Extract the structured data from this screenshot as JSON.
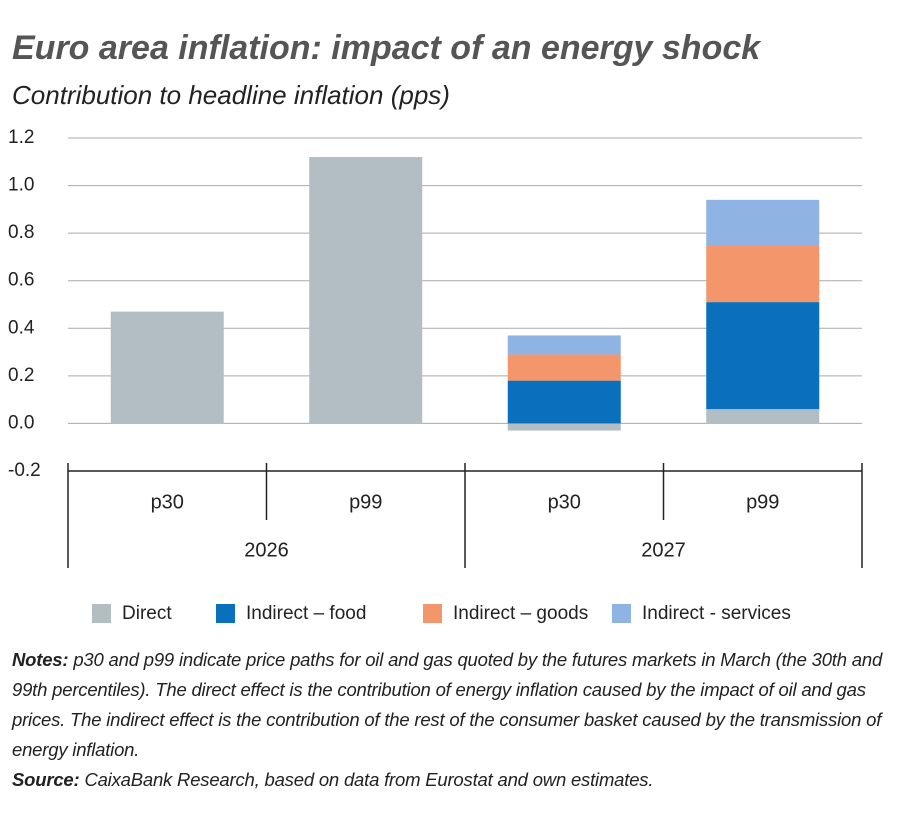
{
  "chart_data": {
    "type": "stacked-bar",
    "title": "Euro area inflation: impact of an energy shock",
    "subtitle": "Contribution to headline inflation (pps)",
    "categories": [
      "p30",
      "p99",
      "p30",
      "p99"
    ],
    "groups": [
      "2026",
      "2027"
    ],
    "series": [
      {
        "name": "Direct",
        "color": "#b2bec3",
        "values": [
          0.47,
          1.12,
          -0.03,
          0.06
        ]
      },
      {
        "name": "Indirect – food",
        "color": "#0a6fbd",
        "values": [
          0,
          0,
          0.18,
          0.45
        ]
      },
      {
        "name": "Indirect – goods",
        "color": "#f4966b",
        "values": [
          0,
          0,
          0.11,
          0.24
        ]
      },
      {
        "name": "Indirect - services",
        "color": "#8fb4e3",
        "values": [
          0,
          0,
          0.08,
          0.19
        ]
      }
    ],
    "ylim": [
      -0.2,
      1.2
    ],
    "yticks": [
      -0.2,
      {
        "value": 0,
        "label": "0.0"
      },
      0.2,
      0.4,
      0.6,
      0.8,
      {
        "value": 1,
        "label": "1.0"
      },
      1.2
    ],
    "grid": true,
    "notes": {
      "label": "Notes:",
      "text": "p30 and p99 indicate price paths for oil and gas quoted by the futures markets in March (the 30th and 99th percentiles). The direct effect is the contribution of energy inflation caused by the impact of oil and gas prices. The indirect effect is the contribution of the rest of the consumer basket caused by the transmission of energy inflation."
    },
    "source": {
      "label": "Source:",
      "text": "CaixaBank Research, based on data from Eurostat and own estimates."
    }
  }
}
